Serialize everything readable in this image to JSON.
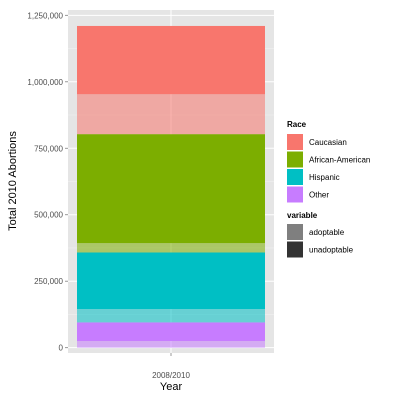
{
  "chart_data": {
    "type": "bar",
    "stacked": true,
    "categories": [
      "2008/2010"
    ],
    "xlabel": "Year",
    "ylabel": "Total 2010 Abortions",
    "ylim": [
      -20000,
      1270000
    ],
    "yticks": [
      0,
      250000,
      500000,
      750000,
      1000000,
      1250000
    ],
    "ytick_labels": [
      "0",
      "250,000",
      "500,000",
      "750,000",
      "1,000,000",
      "1,250,000"
    ],
    "grid": true,
    "legend_position": "right",
    "series": [
      {
        "race": "Other",
        "variable": "unadoptable",
        "value": 25000
      },
      {
        "race": "Other",
        "variable": "adoptable",
        "value": 70000
      },
      {
        "race": "Hispanic",
        "variable": "unadoptable",
        "value": 50000
      },
      {
        "race": "Hispanic",
        "variable": "adoptable",
        "value": 213000
      },
      {
        "race": "African-American",
        "variable": "unadoptable",
        "value": 35000
      },
      {
        "race": "African-American",
        "variable": "adoptable",
        "value": 410000
      },
      {
        "race": "Caucasian",
        "variable": "unadoptable",
        "value": 150000
      },
      {
        "race": "Caucasian",
        "variable": "adoptable",
        "value": 257000
      }
    ],
    "legend_race": {
      "title": "Race",
      "items": [
        {
          "label": "Caucasian",
          "color": "#F8766D"
        },
        {
          "label": "African-American",
          "color": "#7CAE00"
        },
        {
          "label": "Hispanic",
          "color": "#00BFC4"
        },
        {
          "label": "Other",
          "color": "#C77CFF"
        }
      ]
    },
    "legend_variable": {
      "title": "variable",
      "items": [
        {
          "label": "adoptable",
          "color": "#7f7f7f"
        },
        {
          "label": "unadoptable",
          "color": "#333333"
        }
      ]
    },
    "colors": {
      "Caucasian": "#F8766D",
      "African-American": "#7CAE00",
      "Hispanic": "#00BFC4",
      "Other": "#C77CFF",
      "panel_background": "#E5E5E5",
      "grid_major": "#ffffff",
      "grid_minor": "#F2F2F2"
    }
  }
}
